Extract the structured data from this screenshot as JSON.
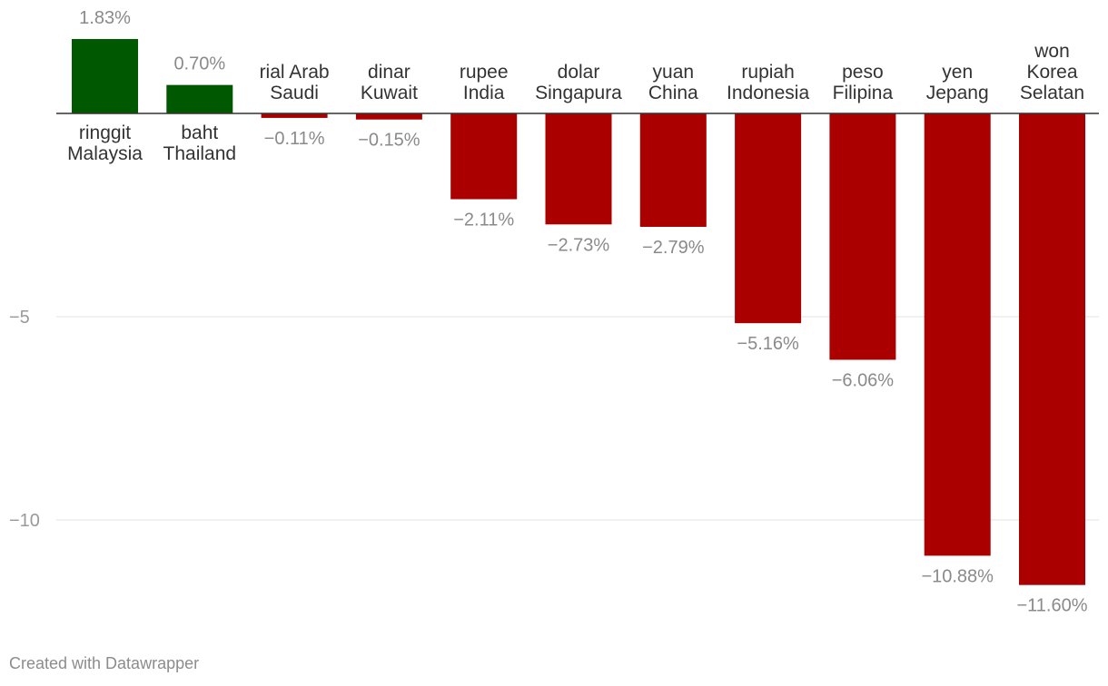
{
  "chart_data": {
    "type": "bar",
    "categories": [
      [
        "ringgit",
        "Malaysia"
      ],
      [
        "baht",
        "Thailand"
      ],
      [
        "rial Arab",
        "Saudi"
      ],
      [
        "dinar",
        "Kuwait"
      ],
      [
        "rupee",
        "India"
      ],
      [
        "dolar",
        "Singapura"
      ],
      [
        "yuan",
        "China"
      ],
      [
        "rupiah",
        "Indonesia"
      ],
      [
        "peso",
        "Filipina"
      ],
      [
        "yen",
        "Jepang"
      ],
      [
        "won",
        "Korea",
        "Selatan"
      ]
    ],
    "values": [
      1.83,
      0.7,
      -0.11,
      -0.15,
      -2.11,
      -2.73,
      -2.79,
      -5.16,
      -6.06,
      -10.88,
      -11.6
    ],
    "value_labels": [
      "1.83%",
      "0.70%",
      "−0.11%",
      "−0.15%",
      "−2.11%",
      "−2.73%",
      "−2.79%",
      "−5.16%",
      "−6.06%",
      "−10.88%",
      "−11.60%"
    ],
    "y_ticks": [
      -5,
      -10
    ],
    "y_tick_labels": [
      "−5",
      "−10"
    ],
    "ylim": [
      -12.5,
      2.3
    ],
    "grid": true,
    "colors": {
      "positive": "#005800",
      "negative": "#aa0000"
    }
  },
  "footer": {
    "credit": "Created with Datawrapper"
  }
}
